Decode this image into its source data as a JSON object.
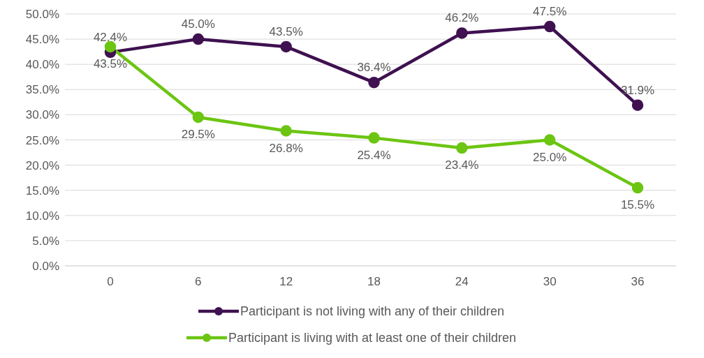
{
  "chart_data": {
    "type": "line",
    "categories": [
      "0",
      "6",
      "12",
      "18",
      "24",
      "30",
      "36"
    ],
    "series": [
      {
        "name": "Participant is not living with any of their children",
        "color": "#3f1150",
        "values": [
          42.4,
          45.0,
          43.5,
          36.4,
          46.2,
          47.5,
          31.9
        ],
        "value_labels": [
          "42.4%",
          "45.0%",
          "43.5%",
          "36.4%",
          "46.2%",
          "47.5%",
          "31.9%"
        ]
      },
      {
        "name": "Participant is living with at least one of their children",
        "color": "#6cc512",
        "values": [
          43.5,
          29.5,
          26.8,
          25.4,
          23.4,
          25.0,
          15.5
        ],
        "value_labels": [
          "43.5%",
          "29.5%",
          "26.8%",
          "25.4%",
          "23.4%",
          "25.0%",
          "15.5%"
        ]
      }
    ],
    "ylim": [
      0,
      50
    ],
    "yticks": [
      {
        "value": 0,
        "label": "0.0%"
      },
      {
        "value": 5,
        "label": "5.0%"
      },
      {
        "value": 10,
        "label": "10.0%"
      },
      {
        "value": 15,
        "label": "15.0%"
      },
      {
        "value": 20,
        "label": "20.0%"
      },
      {
        "value": 25,
        "label": "25.0%"
      },
      {
        "value": 30,
        "label": "30.0%"
      },
      {
        "value": 35,
        "label": "35.0%"
      },
      {
        "value": 40,
        "label": "40.0%"
      },
      {
        "value": 45,
        "label": "45.0%"
      },
      {
        "value": 50,
        "label": "50.0%"
      }
    ],
    "grid": "y",
    "legend": "bottom",
    "marker": "circle",
    "line_style": "solid"
  }
}
